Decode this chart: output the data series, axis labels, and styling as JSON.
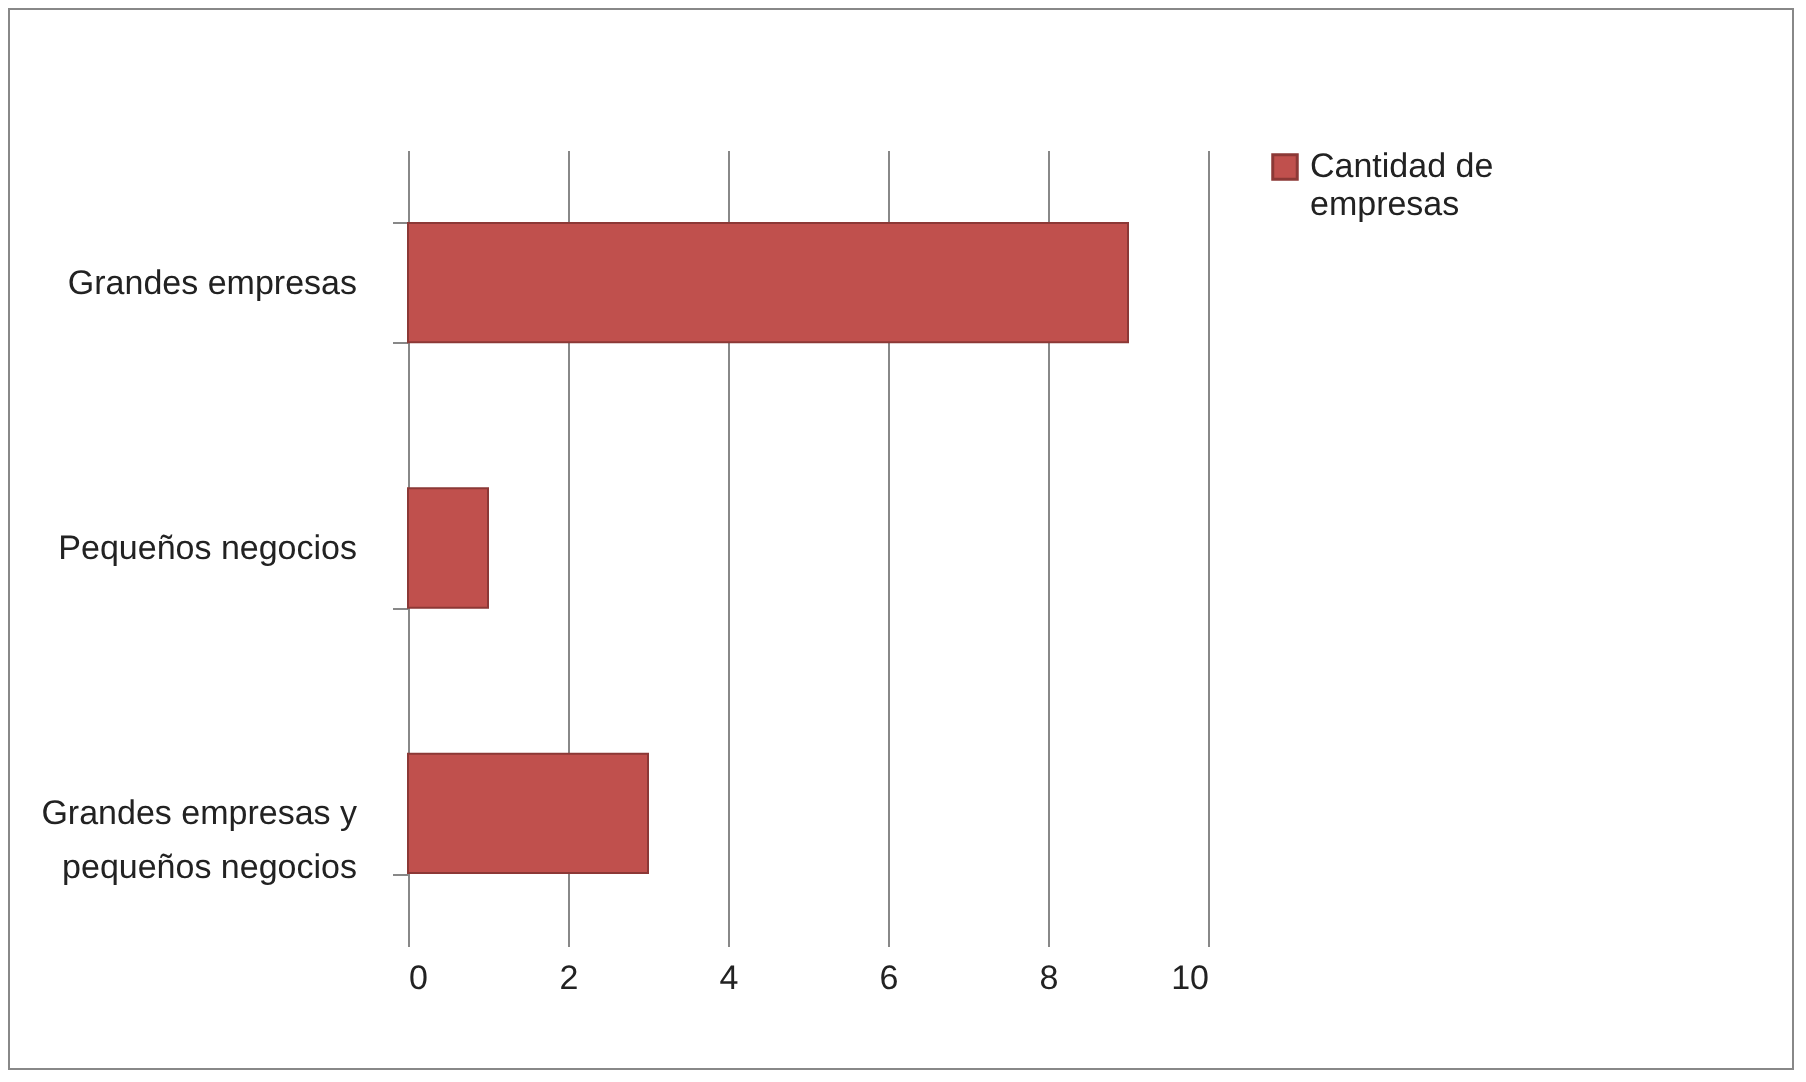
{
  "chart_data": {
    "type": "bar",
    "orientation": "horizontal",
    "categories": [
      "Grandes empresas",
      "Pequeños negocios",
      "Grandes empresas y pequeños negocios"
    ],
    "series": [
      {
        "name": "Cantidad de empresas",
        "color": "#c0504d",
        "values": [
          9,
          1,
          3
        ]
      }
    ],
    "xlim": [
      0,
      10
    ],
    "xticks": [
      0,
      2,
      4,
      6,
      8,
      10
    ],
    "grid": "x",
    "legend": "right"
  }
}
